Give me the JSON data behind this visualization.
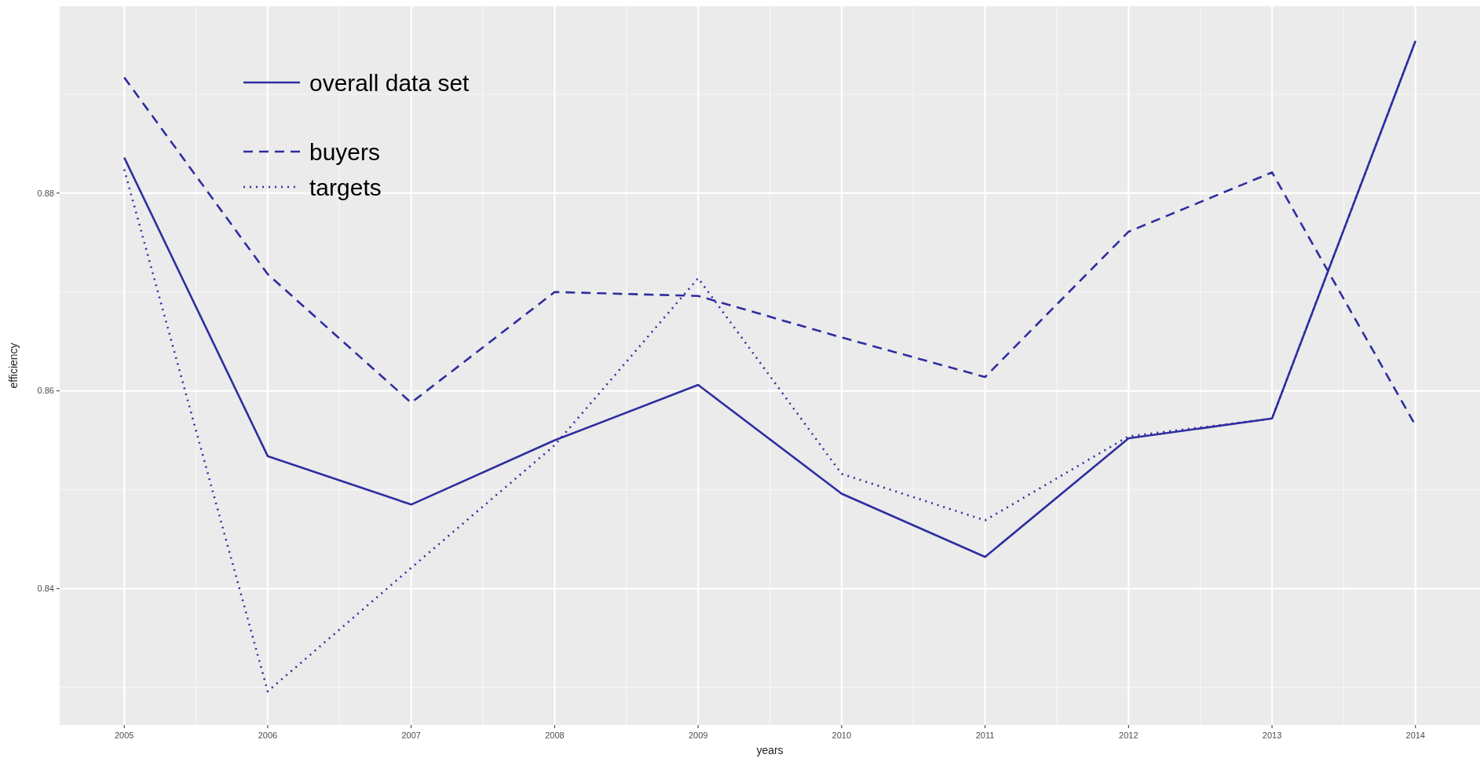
{
  "chart_data": {
    "type": "line",
    "xlabel": "years",
    "ylabel": "efficiency",
    "x": [
      2005,
      2006,
      2007,
      2008,
      2009,
      2010,
      2011,
      2012,
      2013,
      2014
    ],
    "xlim": [
      2004.55,
      2014.45
    ],
    "xticks": [
      2005,
      2006,
      2007,
      2008,
      2009,
      2010,
      2011,
      2012,
      2013,
      2014
    ],
    "ylim": [
      0.8262,
      0.8989
    ],
    "yticks": [
      0.84,
      0.86,
      0.88
    ],
    "grid": true,
    "legend": "top left",
    "series": [
      {
        "name": "overall data set",
        "color": "#2e2ea0",
        "line_style": "solid",
        "values": [
          0.8836,
          0.8534,
          0.8485,
          0.855,
          0.8606,
          0.8496,
          0.8432,
          0.8552,
          0.8572,
          0.8954
        ]
      },
      {
        "name": "buyers",
        "color": "#2e2ea0",
        "line_style": "dashed",
        "values": [
          0.8917,
          0.8718,
          0.8588,
          0.87,
          0.8696,
          0.8654,
          0.8614,
          0.8761,
          0.8821,
          0.8565
        ]
      },
      {
        "name": "targets",
        "color": "#2e2ea0",
        "line_style": "dotted",
        "values": [
          0.8824,
          0.8296,
          0.8421,
          0.8545,
          0.8714,
          0.8516,
          0.8469,
          0.8554,
          0.8572,
          0.8954
        ]
      }
    ]
  }
}
